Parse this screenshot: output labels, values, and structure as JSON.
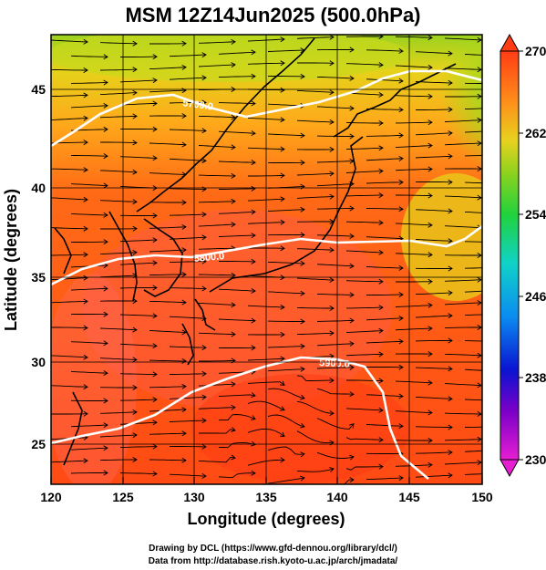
{
  "title": "MSM 12Z14Jun2025 (500.0hPa)",
  "x_axis": {
    "label": "Longitude (degrees)",
    "range": [
      120,
      150
    ],
    "ticks": [
      "120",
      "125",
      "130",
      "135",
      "140",
      "145",
      "150"
    ]
  },
  "y_axis": {
    "label": "Latitude  (degrees)",
    "range": [
      22.5,
      48
    ],
    "ticks": [
      "25",
      "30",
      "35",
      "40",
      "45"
    ]
  },
  "colorbar": {
    "range": [
      230,
      270
    ],
    "labels": [
      "270",
      "262",
      "254",
      "246",
      "238",
      "230"
    ]
  },
  "contours": [
    {
      "label": "5700.0"
    },
    {
      "label": "5800.0"
    },
    {
      "label": "5900.0"
    }
  ],
  "credits": {
    "line1": "Drawing by DCL (https://www.gfd-dennou.org/library/dcl/)",
    "line2": "Data from http://database.rish.kyoto-u.ac.jp/arch/jmadata/"
  },
  "colors": {
    "warm": "#ff4a14",
    "orange": "#ff9a1a",
    "yellow": "#e8d41a",
    "green": "#5ad21e",
    "contour": "#ffffff",
    "coast": "#000000"
  }
}
